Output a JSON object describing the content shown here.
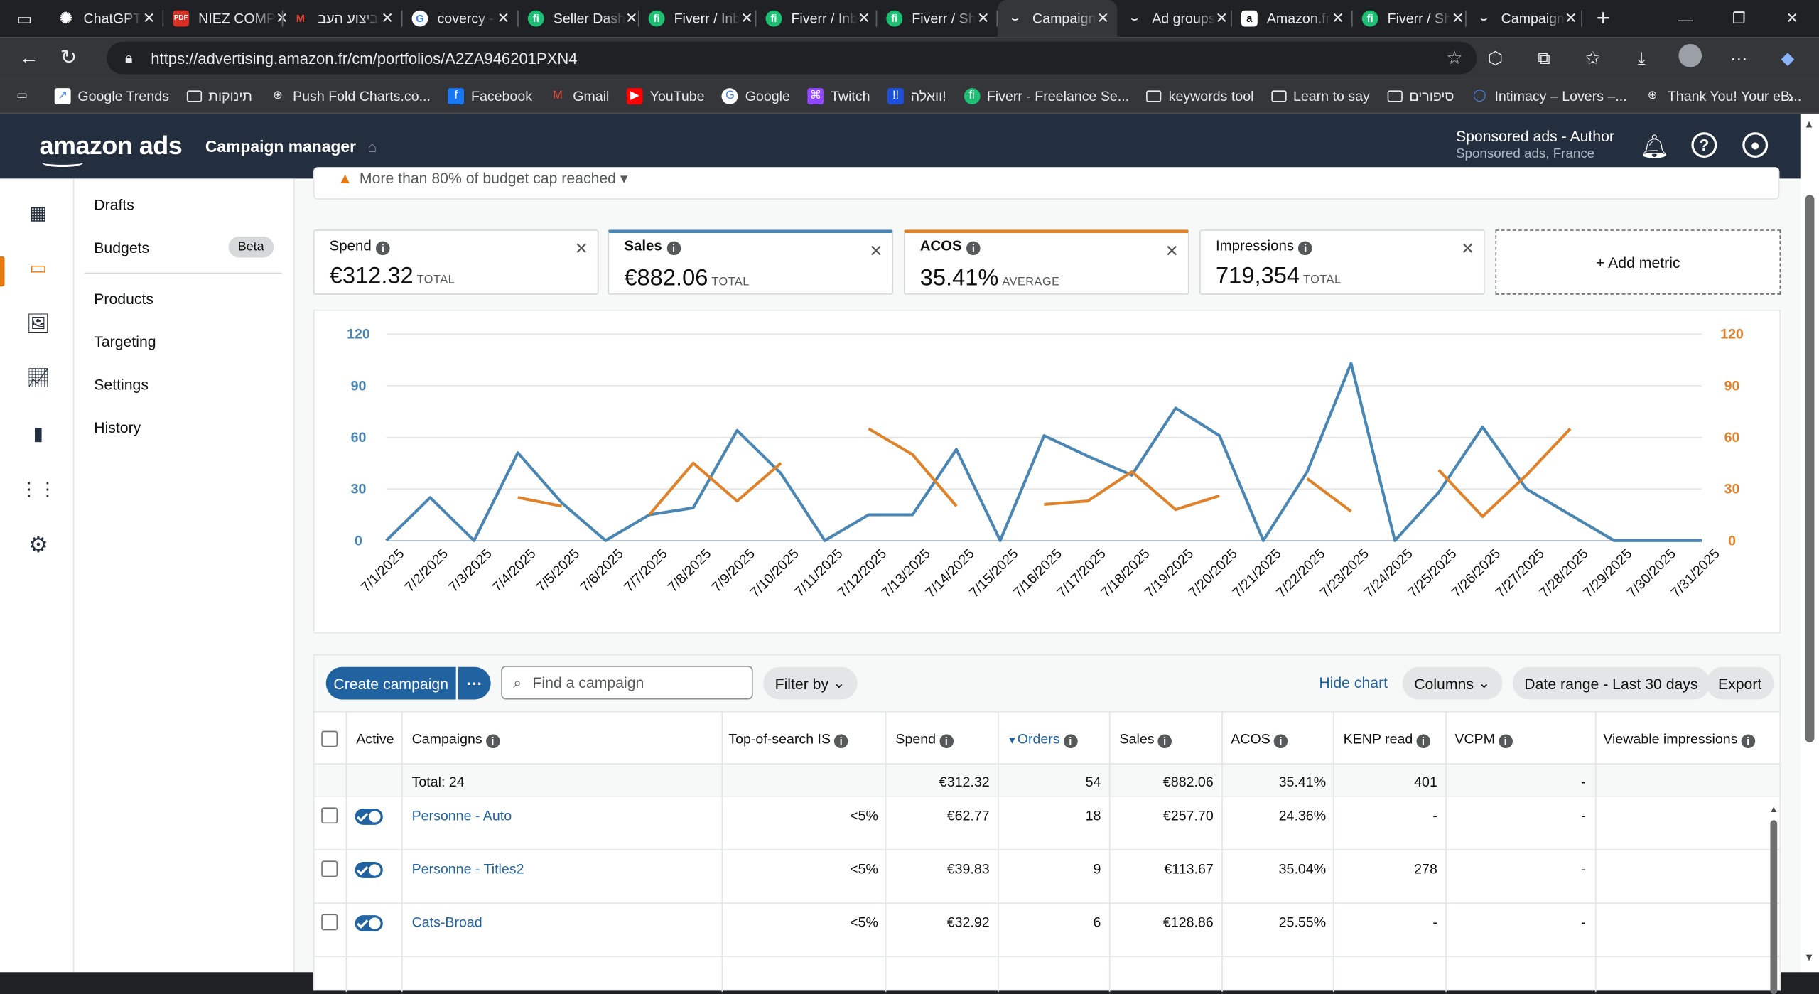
{
  "browser": {
    "tabs": [
      {
        "title": "ChatGPT",
        "icon": "chatgpt-icon",
        "color": "#3c3c3c"
      },
      {
        "title": "NIEZ COMP",
        "icon": "pdf-icon",
        "color": "#d93025"
      },
      {
        "title": "ביצוע העב",
        "icon": "gmail-icon",
        "color": "#c5221f"
      },
      {
        "title": "covercy - ",
        "icon": "google-icon",
        "color": "#4285f4"
      },
      {
        "title": "Seller Dash",
        "icon": "fiverr-icon",
        "color": "#1dbf73"
      },
      {
        "title": "Fiverr / Inb",
        "icon": "fiverr-icon",
        "color": "#1dbf73"
      },
      {
        "title": "Fiverr / Inb",
        "icon": "fiverr-icon",
        "color": "#1dbf73"
      },
      {
        "title": "Fiverr / Sh",
        "icon": "fiverr-icon",
        "color": "#1dbf73"
      },
      {
        "title": "Campaign",
        "icon": "amazon-icon",
        "color": "#232f3e",
        "active": true
      },
      {
        "title": "Ad groups",
        "icon": "amazon-icon",
        "color": "#232f3e"
      },
      {
        "title": "Amazon.fr",
        "icon": "amazon-a-icon",
        "color": "#ffffff"
      },
      {
        "title": "Fiverr / Sh",
        "icon": "fiverr-icon",
        "color": "#1dbf73"
      },
      {
        "title": "Campaign",
        "icon": "amazon-icon",
        "color": "#232f3e"
      }
    ],
    "url": "https://advertising.amazon.fr/cm/portfolios/A2ZA946201PXN4",
    "bookmarks": [
      {
        "label": "",
        "icon": "reading-list-icon"
      },
      {
        "label": "Google Trends",
        "icon": "trends-icon"
      },
      {
        "label": "תינוקות",
        "icon": "folder-icon"
      },
      {
        "label": "Push Fold Charts.co...",
        "icon": "globe-icon"
      },
      {
        "label": "Facebook",
        "icon": "facebook-icon"
      },
      {
        "label": "Gmail",
        "icon": "gmail-icon"
      },
      {
        "label": "YouTube",
        "icon": "youtube-icon"
      },
      {
        "label": "Google",
        "icon": "google-icon"
      },
      {
        "label": "Twitch",
        "icon": "twitch-icon"
      },
      {
        "label": "וואלה!",
        "icon": "walla-icon"
      },
      {
        "label": "Fiverr - Freelance Se...",
        "icon": "fiverr-icon"
      },
      {
        "label": "keywords tool",
        "icon": "folder-icon"
      },
      {
        "label": "Learn to say",
        "icon": "folder-icon"
      },
      {
        "label": "סיפורים",
        "icon": "folder-icon"
      },
      {
        "label": "Intimacy – Lovers –...",
        "icon": "circle-icon"
      },
      {
        "label": "Thank You! Your eB...",
        "icon": "globe-icon"
      }
    ]
  },
  "header": {
    "logo": "amazon ads",
    "app_name": "Campaign manager",
    "account_name": "Sponsored ads - Author",
    "account_sub": "Sponsored ads, France"
  },
  "subnav": {
    "items": [
      "Drafts",
      "Budgets",
      "Products",
      "Targeting",
      "Settings",
      "History"
    ],
    "beta": "Beta"
  },
  "warning": "More than 80% of budget cap reached",
  "metrics": [
    {
      "label": "Spend",
      "value": "€312.32",
      "unit": "TOTAL"
    },
    {
      "label": "Sales",
      "value": "€882.06",
      "unit": "TOTAL",
      "line_color": "#4a86b3"
    },
    {
      "label": "ACOS",
      "value": "35.41%",
      "unit": "AVERAGE",
      "line_color": "#e0822a"
    },
    {
      "label": "Impressions",
      "value": "719,354",
      "unit": "TOTAL"
    }
  ],
  "add_metric": "+ Add metric",
  "chart_data": {
    "type": "line",
    "x": [
      "7/1/2025",
      "7/2/2025",
      "7/3/2025",
      "7/4/2025",
      "7/5/2025",
      "7/6/2025",
      "7/7/2025",
      "7/8/2025",
      "7/9/2025",
      "7/10/2025",
      "7/11/2025",
      "7/12/2025",
      "7/13/2025",
      "7/14/2025",
      "7/15/2025",
      "7/16/2025",
      "7/17/2025",
      "7/18/2025",
      "7/19/2025",
      "7/20/2025",
      "7/21/2025",
      "7/22/2025",
      "7/23/2025",
      "7/24/2025",
      "7/25/2025",
      "7/26/2025",
      "7/27/2025",
      "7/28/2025",
      "7/29/2025",
      "7/30/2025",
      "7/31/2025"
    ],
    "yticks_left": [
      "0",
      "30",
      "60",
      "90",
      "120"
    ],
    "yticks_right": [
      "0",
      "30",
      "60",
      "90",
      "120"
    ],
    "ylim": [
      0,
      120
    ],
    "series": [
      {
        "name": "Sales",
        "color": "#4a86b3",
        "values": [
          0,
          25,
          0,
          51,
          22,
          0,
          15,
          19,
          64,
          39,
          0,
          15,
          15,
          53,
          0,
          61,
          49,
          38,
          77,
          61,
          0,
          40,
          103,
          0,
          28,
          66,
          30,
          15,
          0,
          0,
          0
        ]
      },
      {
        "name": "ACOS",
        "color": "#e0822a",
        "values": [
          null,
          null,
          null,
          25,
          20,
          null,
          15,
          45,
          23,
          45,
          null,
          65,
          50,
          20,
          null,
          21,
          23,
          40,
          18,
          26,
          null,
          36,
          17,
          null,
          41,
          14,
          38,
          65,
          null,
          null,
          null
        ]
      }
    ],
    "grid": true
  },
  "toolbar": {
    "create": "Create campaign",
    "more": "···",
    "search_placeholder": "Find a campaign",
    "filter": "Filter by",
    "hide_chart": "Hide chart",
    "columns": "Columns",
    "date_range": "Date range - Last 30 days",
    "export": "Export"
  },
  "table": {
    "headers": [
      "Active",
      "Campaigns",
      "Top-of-search IS",
      "Spend",
      "Orders",
      "Sales",
      "ACOS",
      "KENP read",
      "VCPM",
      "Viewable impressions"
    ],
    "total": {
      "label": "Total: 24",
      "spend": "€312.32",
      "orders": "54",
      "sales": "€882.06",
      "acos": "35.41%",
      "kenp": "401",
      "vcpm": "-"
    },
    "rows": [
      {
        "name": "Personne - Auto",
        "tos": "<5%",
        "spend": "€62.77",
        "orders": "18",
        "sales": "€257.70",
        "acos": "24.36%",
        "kenp": "-",
        "vcpm": "-"
      },
      {
        "name": "Personne - Titles2",
        "tos": "<5%",
        "spend": "€39.83",
        "orders": "9",
        "sales": "€113.67",
        "acos": "35.04%",
        "kenp": "278",
        "vcpm": "-"
      },
      {
        "name": "Cats-Broad",
        "tos": "<5%",
        "spend": "€32.92",
        "orders": "6",
        "sales": "€128.86",
        "acos": "25.55%",
        "kenp": "-",
        "vcpm": "-"
      }
    ]
  }
}
